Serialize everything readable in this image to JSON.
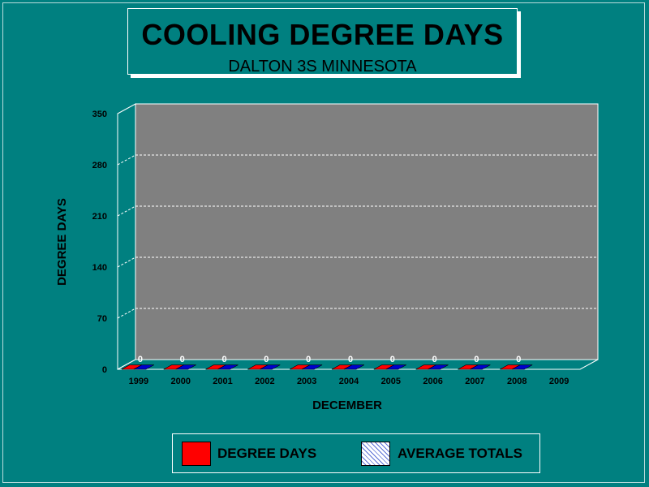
{
  "title": "COOLING DEGREE DAYS",
  "subtitle": "DALTON 3S MINNESOTA",
  "legend": {
    "degree_days": "DEGREE DAYS",
    "average_totals": "AVERAGE TOTALS"
  },
  "colors": {
    "background": "#008080",
    "plot": "#808080",
    "degree_days": "#ff0000",
    "average_totals": "#0000cc"
  },
  "chart_data": {
    "type": "bar",
    "xlabel": "DECEMBER",
    "ylabel": "DEGREE DAYS",
    "ylim": [
      0,
      350
    ],
    "yticks": [
      "0",
      "70",
      "140",
      "210",
      "280",
      "350"
    ],
    "grid": true,
    "legend_position": "bottom",
    "categories": [
      "1999",
      "2000",
      "2001",
      "2002",
      "2003",
      "2004",
      "2005",
      "2006",
      "2007",
      "2008",
      "2009"
    ],
    "series": [
      {
        "name": "DEGREE DAYS",
        "values": [
          0,
          0,
          0,
          0,
          0,
          0,
          0,
          0,
          0,
          0,
          null
        ]
      },
      {
        "name": "AVERAGE TOTALS",
        "values": [
          0,
          0,
          0,
          0,
          0,
          0,
          0,
          0,
          0,
          0,
          null
        ]
      }
    ],
    "data_labels": [
      "0",
      "0",
      "0",
      "0",
      "0",
      "0",
      "0",
      "0",
      "0",
      "0",
      ""
    ]
  }
}
